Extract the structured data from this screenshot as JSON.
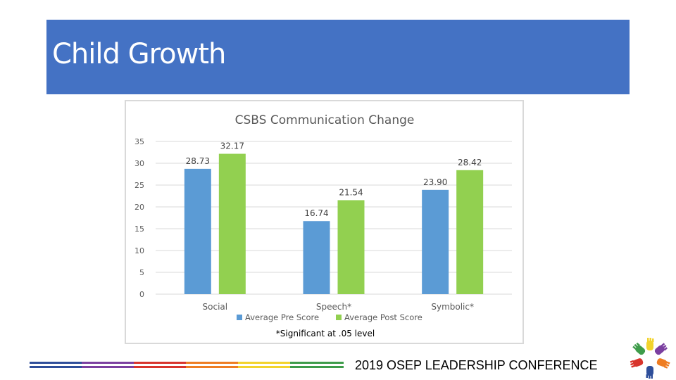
{
  "slide": {
    "title": "Child Growth",
    "footer_text": "2019 OSEP LEADERSHIP CONFERENCE",
    "logo_icon": "hands-circle-icon"
  },
  "colors": {
    "banner": "#4472c4",
    "pre_series": "#5b9bd5",
    "post_series": "#92d050",
    "stripes": [
      "#2e4e9a",
      "#7b3fa0",
      "#d8342c",
      "#ee7d22",
      "#f2d32c",
      "#3e9c4a"
    ]
  },
  "chart_data": {
    "type": "bar",
    "title": "CSBS Communication Change",
    "categories": [
      "Social",
      "Speech*",
      "Symbolic*"
    ],
    "series": [
      {
        "name": "Average Pre Score",
        "values": [
          28.73,
          16.74,
          23.9
        ],
        "labels": [
          "28.73",
          "16.74",
          "23.90"
        ]
      },
      {
        "name": "Average Post Score",
        "values": [
          32.17,
          21.54,
          28.42
        ],
        "labels": [
          "32.17",
          "21.54",
          "28.42"
        ]
      }
    ],
    "ylim": [
      0,
      35
    ],
    "yticks": [
      0,
      5,
      10,
      15,
      20,
      25,
      30,
      35
    ],
    "grid": true,
    "legend": "bottom",
    "note": "*Significant  at .05 level"
  }
}
